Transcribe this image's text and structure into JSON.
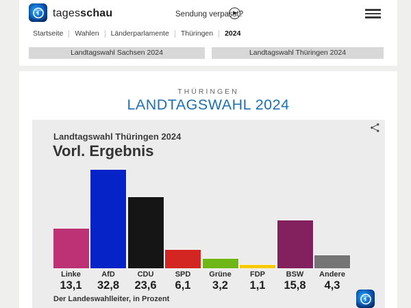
{
  "header": {
    "brand_regular": "tages",
    "brand_bold": "schau",
    "watch_link": "Sendung verpasst?"
  },
  "breadcrumb": [
    "Startseite",
    "Wahlen",
    "Länderparlamente",
    "Thüringen",
    "2024"
  ],
  "buttons": {
    "sachsen": "Landtagswahl Sachsen 2024",
    "thueringen": "Landtagswahl Thüringen 2024"
  },
  "page": {
    "kicker": "THÜRINGEN",
    "title": "LANDTAGSWAHL 2024"
  },
  "chart_data": {
    "type": "bar",
    "title": "Landtagswahl Thüringen 2024",
    "subtitle": "Vorl. Ergebnis",
    "source": "Der Landeswahlleiter, in Prozent",
    "categories": [
      "Linke",
      "AfD",
      "CDU",
      "SPD",
      "Grüne",
      "FDP",
      "BSW",
      "Andere"
    ],
    "values": [
      13.1,
      32.8,
      23.6,
      6.1,
      3.2,
      1.1,
      15.8,
      4.3
    ],
    "value_labels": [
      "13,1",
      "32,8",
      "23,6",
      "6,1",
      "3,2",
      "1,1",
      "15,8",
      "4,3"
    ],
    "bar_colors": [
      "#bd3274",
      "#0623c8",
      "#151515",
      "#d32521",
      "#6fb617",
      "#f6c900",
      "#83215f",
      "#757575"
    ],
    "ylabel": "Prozent",
    "ylim": [
      0,
      35
    ],
    "grid": false,
    "legend": false
  },
  "colors": {
    "accent_blue": "#1d70b4",
    "page_bg": "#efefee",
    "chart_bg": "#ececec",
    "button_bg": "#d8d8d8"
  }
}
